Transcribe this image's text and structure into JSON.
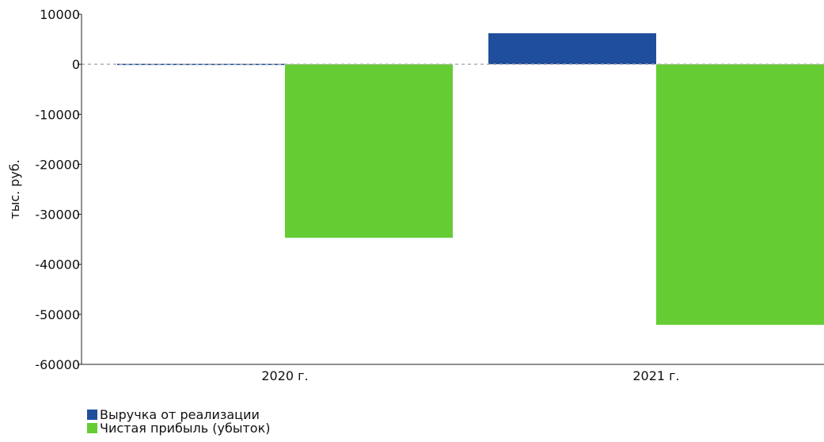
{
  "chart_data": {
    "type": "bar",
    "title": "",
    "xlabel": "",
    "ylabel": "тыс. руб.",
    "categories": [
      "2020 г.",
      "2021 г."
    ],
    "ylim": [
      -60000,
      10000
    ],
    "yticks": [
      10000,
      0,
      -10000,
      -20000,
      -30000,
      -40000,
      -50000,
      -60000
    ],
    "grid": false,
    "legend_position": "bottom-left",
    "series": [
      {
        "name": "Выручка от реализации",
        "color": "#1f4e9c",
        "values": [
          80,
          6200
        ]
      },
      {
        "name": "Чистая прибыль (убыток)",
        "color": "#66cc33",
        "values": [
          -34700,
          -52100
        ]
      }
    ]
  }
}
